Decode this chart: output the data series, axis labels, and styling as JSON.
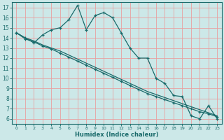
{
  "xlabel": "Humidex (Indice chaleur)",
  "bg_color": "#cce8e8",
  "grid_color": "#e8a0a0",
  "line_color": "#1a6b6b",
  "spine_color": "#1a6b6b",
  "xlim": [
    -0.5,
    23.5
  ],
  "ylim": [
    5.5,
    17.5
  ],
  "yticks": [
    6,
    7,
    8,
    9,
    10,
    11,
    12,
    13,
    14,
    15,
    16,
    17
  ],
  "xticks": [
    0,
    1,
    2,
    3,
    4,
    5,
    6,
    7,
    8,
    9,
    10,
    11,
    12,
    13,
    14,
    15,
    16,
    17,
    18,
    19,
    20,
    21,
    22,
    23
  ],
  "series1_x": [
    0,
    1,
    2,
    3,
    4,
    5,
    6,
    7,
    8,
    9,
    10,
    11,
    12,
    13,
    14,
    15,
    16,
    17,
    18,
    19,
    20,
    21,
    22,
    23
  ],
  "series1_y": [
    14.5,
    14.0,
    13.5,
    14.3,
    14.8,
    15.0,
    15.8,
    17.2,
    14.8,
    16.2,
    16.5,
    16.0,
    14.5,
    13.0,
    12.0,
    12.0,
    10.0,
    9.5,
    8.3,
    8.2,
    6.3,
    6.0,
    7.3,
    6.0
  ],
  "series2_x": [
    0,
    1,
    2,
    3,
    4,
    5,
    6,
    7,
    8,
    9,
    10,
    11,
    12,
    13,
    14,
    15,
    16,
    17,
    18,
    19,
    20,
    21,
    22,
    23
  ],
  "series2_y": [
    14.5,
    13.9,
    13.6,
    13.2,
    12.9,
    12.5,
    12.1,
    11.7,
    11.3,
    10.9,
    10.5,
    10.1,
    9.7,
    9.3,
    8.9,
    8.5,
    8.2,
    7.9,
    7.6,
    7.3,
    7.0,
    6.7,
    6.5,
    6.2
  ],
  "series3_x": [
    0,
    1,
    2,
    3,
    4,
    5,
    6,
    7,
    8,
    9,
    10,
    11,
    12,
    13,
    14,
    15,
    16,
    17,
    18,
    19,
    20,
    21,
    22,
    23
  ],
  "series3_y": [
    14.5,
    14.0,
    13.7,
    13.3,
    13.0,
    12.7,
    12.3,
    11.9,
    11.5,
    11.1,
    10.7,
    10.3,
    9.9,
    9.5,
    9.1,
    8.7,
    8.4,
    8.1,
    7.8,
    7.5,
    7.2,
    6.9,
    6.6,
    6.3
  ]
}
